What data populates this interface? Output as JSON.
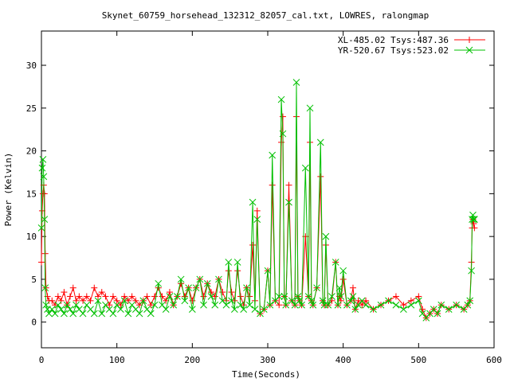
{
  "chart_data": {
    "type": "line",
    "title": "Skynet_60759_horsehead_132312_82057_cal.txt, LOWRES, ralongmap",
    "xlabel": "Time(Seconds)",
    "ylabel": "Power (Kelvin)",
    "xlim": [
      0,
      600
    ],
    "ylim": [
      -3,
      34
    ],
    "x_ticks": [
      0,
      100,
      200,
      300,
      400,
      500,
      600
    ],
    "y_ticks": [
      0,
      5,
      10,
      15,
      20,
      25,
      30
    ],
    "grid": false,
    "legend_position": "top-right",
    "series": [
      {
        "name": "XL-485.02 Tsys:487.36",
        "color": "#ff0000",
        "marker": "plus",
        "x": [
          0,
          1,
          2,
          3,
          4,
          5,
          6,
          8,
          10,
          14,
          18,
          22,
          26,
          30,
          34,
          38,
          42,
          46,
          50,
          55,
          60,
          65,
          70,
          75,
          80,
          85,
          90,
          95,
          100,
          105,
          110,
          115,
          120,
          125,
          130,
          135,
          140,
          145,
          150,
          155,
          160,
          165,
          170,
          175,
          180,
          185,
          190,
          195,
          200,
          205,
          210,
          215,
          220,
          225,
          230,
          235,
          240,
          245,
          248,
          252,
          256,
          260,
          264,
          268,
          272,
          276,
          280,
          283,
          286,
          290,
          295,
          300,
          303,
          306,
          310,
          315,
          318,
          320,
          322,
          324,
          328,
          332,
          336,
          338,
          340,
          342,
          345,
          350,
          354,
          356,
          358,
          360,
          365,
          370,
          373,
          375,
          377,
          380,
          385,
          390,
          393,
          395,
          397,
          400,
          405,
          410,
          413,
          416,
          420,
          425,
          430,
          440,
          450,
          460,
          470,
          480,
          490,
          500,
          505,
          510,
          515,
          520,
          525,
          530,
          540,
          550,
          560,
          565,
          568,
          570,
          571,
          572,
          573,
          574
        ],
        "y": [
          7,
          13,
          15,
          16,
          15,
          8,
          4,
          3,
          2.5,
          2.5,
          2,
          3,
          2.5,
          3.5,
          2,
          3,
          4,
          2.5,
          3,
          2.5,
          3,
          2.5,
          4,
          3,
          3.5,
          3,
          2,
          3,
          2.5,
          2,
          3,
          2.5,
          3,
          2.5,
          2,
          2.5,
          3,
          2,
          3,
          4,
          3,
          2.5,
          3.5,
          2,
          3,
          4.5,
          3,
          4,
          2.5,
          4,
          5,
          3,
          4.5,
          3.5,
          3,
          5,
          3.5,
          2.5,
          6,
          3.5,
          2.5,
          6,
          3,
          2,
          4,
          3,
          9,
          2.5,
          13,
          1,
          1.5,
          6,
          2,
          16,
          2.5,
          2,
          21,
          24,
          3,
          2,
          16,
          2.5,
          2,
          24,
          3,
          2.5,
          2,
          10,
          3,
          21,
          2.5,
          2,
          4,
          17,
          2.5,
          2,
          9,
          2,
          2.5,
          7,
          2,
          3,
          2.5,
          5,
          2,
          2.5,
          4,
          1.5,
          2.5,
          2,
          2.5,
          1.5,
          2,
          2.5,
          3,
          2,
          2.5,
          3,
          1.5,
          0.5,
          1,
          1.5,
          1,
          2,
          1.5,
          2,
          1.5,
          2,
          2.5,
          7,
          11,
          12,
          11.5,
          11
        ]
      },
      {
        "name": "YR-520.67 Tsys:523.02",
        "color": "#00c000",
        "marker": "x",
        "x": [
          0,
          1,
          2,
          3,
          4,
          5,
          6,
          8,
          10,
          14,
          18,
          22,
          26,
          30,
          34,
          38,
          42,
          46,
          50,
          55,
          60,
          65,
          70,
          75,
          80,
          85,
          90,
          95,
          100,
          105,
          110,
          115,
          120,
          125,
          130,
          135,
          140,
          145,
          150,
          155,
          160,
          165,
          170,
          175,
          180,
          185,
          190,
          195,
          200,
          205,
          210,
          215,
          220,
          225,
          230,
          235,
          240,
          245,
          248,
          252,
          256,
          260,
          264,
          268,
          272,
          276,
          280,
          283,
          286,
          290,
          295,
          300,
          303,
          306,
          310,
          315,
          318,
          320,
          322,
          324,
          328,
          332,
          336,
          338,
          340,
          342,
          345,
          350,
          354,
          356,
          358,
          360,
          365,
          370,
          373,
          375,
          377,
          380,
          385,
          390,
          393,
          395,
          397,
          400,
          405,
          410,
          413,
          416,
          420,
          425,
          430,
          440,
          450,
          460,
          470,
          480,
          490,
          500,
          505,
          510,
          515,
          520,
          525,
          530,
          540,
          550,
          560,
          565,
          568,
          570,
          571,
          572,
          573,
          574
        ],
        "y": [
          11,
          18,
          19,
          17,
          12,
          4,
          2,
          1.5,
          1,
          1.5,
          1,
          2,
          1.5,
          1,
          2,
          1.5,
          1,
          2,
          1.5,
          1,
          2,
          1.5,
          1,
          2.5,
          1,
          2,
          1.5,
          1,
          2,
          1.5,
          2.5,
          1,
          2,
          1.5,
          1,
          2.5,
          1.5,
          1,
          2,
          4.5,
          2,
          1.5,
          3,
          2,
          3,
          5,
          2.5,
          4,
          1.5,
          4,
          5,
          2,
          4.5,
          3,
          2,
          5,
          2.5,
          2,
          7,
          2.5,
          1.5,
          7,
          2,
          1.5,
          4,
          2,
          14,
          1.5,
          12,
          1,
          1.5,
          6,
          2,
          19.5,
          2.5,
          3,
          26,
          22,
          3,
          2,
          14,
          2.5,
          2,
          28,
          3,
          2.5,
          2,
          18,
          3,
          25,
          2.5,
          2,
          4,
          21,
          2.5,
          2,
          10,
          2,
          3,
          7,
          2,
          4,
          3,
          6,
          2,
          2.5,
          3,
          1.5,
          2,
          2.5,
          2,
          1.5,
          2,
          2.5,
          2,
          1.5,
          2,
          2.5,
          1,
          0.5,
          1,
          1.5,
          1,
          2,
          1.5,
          2,
          1.5,
          2,
          2.5,
          6,
          12,
          12.5,
          12,
          12
        ]
      }
    ]
  }
}
